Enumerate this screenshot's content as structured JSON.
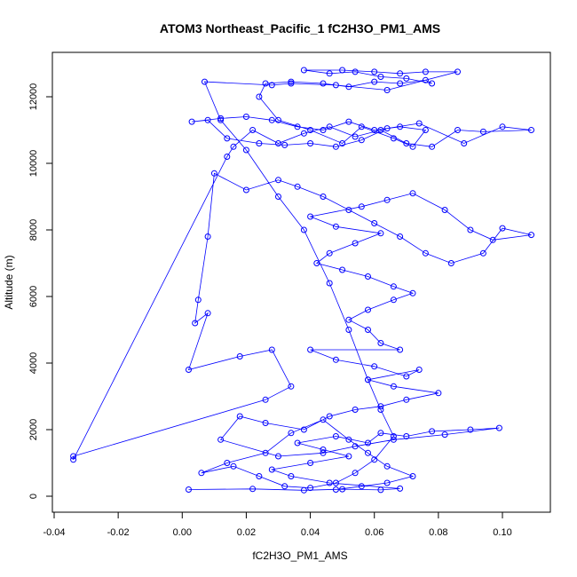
{
  "chart_data": {
    "type": "scatter",
    "title": "ATOM3 Northeast_Pacific_1 fC2H3O_PM1_AMS",
    "xlabel": "fC2H3O_PM1_AMS",
    "ylabel": "Altitude (m)",
    "xlim": [
      -0.04,
      0.11
    ],
    "ylim": [
      0,
      13000
    ],
    "x_ticks": [
      -0.04,
      -0.02,
      0.0,
      0.02,
      0.04,
      0.06,
      0.08,
      0.1
    ],
    "x_tick_labels": [
      "-0.04",
      "-0.02",
      "0.00",
      "0.02",
      "0.04",
      "0.06",
      "0.08",
      "0.10"
    ],
    "y_ticks": [
      0,
      2000,
      4000,
      6000,
      8000,
      10000,
      12000
    ],
    "y_tick_labels": [
      "0",
      "2000",
      "4000",
      "6000",
      "8000",
      "10000",
      "12000"
    ],
    "grid": false,
    "series_color": "#0000ff",
    "marker": "open-circle",
    "connected": true,
    "points": [
      [
        0.002,
        200
      ],
      [
        0.022,
        220
      ],
      [
        0.038,
        180
      ],
      [
        0.05,
        210
      ],
      [
        0.062,
        190
      ],
      [
        0.068,
        230
      ],
      [
        0.046,
        400
      ],
      [
        0.034,
        600
      ],
      [
        0.028,
        800
      ],
      [
        0.04,
        1000
      ],
      [
        0.052,
        1200
      ],
      [
        0.044,
        1400
      ],
      [
        0.036,
        1600
      ],
      [
        0.048,
        1800
      ],
      [
        0.058,
        1600
      ],
      [
        0.062,
        1900
      ],
      [
        0.07,
        1800
      ],
      [
        0.078,
        1950
      ],
      [
        0.09,
        2000
      ],
      [
        0.099,
        2050
      ],
      [
        0.082,
        1850
      ],
      [
        0.066,
        1700
      ],
      [
        0.054,
        1500
      ],
      [
        0.044,
        1300
      ],
      [
        0.03,
        1200
      ],
      [
        0.012,
        1700
      ],
      [
        0.018,
        2400
      ],
      [
        0.026,
        2200
      ],
      [
        0.038,
        2000
      ],
      [
        0.046,
        2400
      ],
      [
        0.054,
        2600
      ],
      [
        0.062,
        2700
      ],
      [
        0.07,
        2900
      ],
      [
        0.08,
        3100
      ],
      [
        0.066,
        3300
      ],
      [
        0.058,
        3500
      ],
      [
        0.074,
        3800
      ],
      [
        0.07,
        3600
      ],
      [
        0.06,
        3900
      ],
      [
        0.048,
        4100
      ],
      [
        0.04,
        4400
      ],
      [
        0.068,
        4400
      ],
      [
        0.062,
        4600
      ],
      [
        0.058,
        5000
      ],
      [
        0.052,
        5300
      ],
      [
        0.058,
        5600
      ],
      [
        0.066,
        5900
      ],
      [
        0.072,
        6100
      ],
      [
        0.066,
        6300
      ],
      [
        0.058,
        6600
      ],
      [
        0.05,
        6800
      ],
      [
        0.042,
        7000
      ],
      [
        0.046,
        7300
      ],
      [
        0.054,
        7600
      ],
      [
        0.062,
        7900
      ],
      [
        0.048,
        8100
      ],
      [
        0.04,
        8400
      ],
      [
        0.056,
        8700
      ],
      [
        0.064,
        8900
      ],
      [
        0.072,
        9100
      ],
      [
        0.082,
        8600
      ],
      [
        0.09,
        8000
      ],
      [
        0.097,
        7700
      ],
      [
        0.109,
        7850
      ],
      [
        0.1,
        8050
      ],
      [
        0.094,
        7300
      ],
      [
        0.084,
        7000
      ],
      [
        0.076,
        7300
      ],
      [
        0.068,
        7800
      ],
      [
        0.06,
        8200
      ],
      [
        0.052,
        8600
      ],
      [
        0.044,
        9000
      ],
      [
        0.036,
        9300
      ],
      [
        0.03,
        9500
      ],
      [
        0.02,
        9200
      ],
      [
        0.01,
        9700
      ],
      [
        0.008,
        7800
      ],
      [
        0.005,
        5900
      ],
      [
        0.004,
        5200
      ],
      [
        0.008,
        5500
      ],
      [
        0.002,
        3800
      ],
      [
        0.018,
        4200
      ],
      [
        0.028,
        4400
      ],
      [
        0.034,
        3300
      ],
      [
        0.026,
        2900
      ],
      [
        -0.034,
        1200
      ],
      [
        -0.034,
        1100
      ],
      [
        0.014,
        10200
      ],
      [
        0.016,
        10500
      ],
      [
        0.022,
        11000
      ],
      [
        0.03,
        10600
      ],
      [
        0.038,
        10900
      ],
      [
        0.046,
        11100
      ],
      [
        0.054,
        10800
      ],
      [
        0.062,
        11000
      ],
      [
        0.07,
        10600
      ],
      [
        0.078,
        10500
      ],
      [
        0.086,
        11000
      ],
      [
        0.094,
        10950
      ],
      [
        0.109,
        11000
      ],
      [
        0.1,
        11100
      ],
      [
        0.088,
        10600
      ],
      [
        0.074,
        11200
      ],
      [
        0.064,
        11050
      ],
      [
        0.056,
        10700
      ],
      [
        0.048,
        10500
      ],
      [
        0.04,
        10600
      ],
      [
        0.032,
        10550
      ],
      [
        0.024,
        10600
      ],
      [
        0.014,
        10750
      ],
      [
        0.008,
        11300
      ],
      [
        0.003,
        11250
      ],
      [
        0.012,
        11350
      ],
      [
        0.02,
        11400
      ],
      [
        0.028,
        11300
      ],
      [
        0.036,
        11100
      ],
      [
        0.044,
        11000
      ],
      [
        0.052,
        11250
      ],
      [
        0.06,
        11000
      ],
      [
        0.068,
        11100
      ],
      [
        0.076,
        11000
      ],
      [
        0.072,
        10500
      ],
      [
        0.066,
        10750
      ],
      [
        0.056,
        11100
      ],
      [
        0.05,
        10600
      ],
      [
        0.04,
        11000
      ],
      [
        0.03,
        11300
      ],
      [
        0.024,
        12000
      ],
      [
        0.026,
        12400
      ],
      [
        0.034,
        12450
      ],
      [
        0.044,
        12400
      ],
      [
        0.052,
        12300
      ],
      [
        0.06,
        12450
      ],
      [
        0.068,
        12400
      ],
      [
        0.076,
        12500
      ],
      [
        0.078,
        12400
      ],
      [
        0.07,
        12550
      ],
      [
        0.062,
        12600
      ],
      [
        0.054,
        12750
      ],
      [
        0.046,
        12700
      ],
      [
        0.038,
        12800
      ],
      [
        0.05,
        12800
      ],
      [
        0.06,
        12750
      ],
      [
        0.068,
        12700
      ],
      [
        0.076,
        12750
      ],
      [
        0.086,
        12750
      ],
      [
        0.064,
        12200
      ],
      [
        0.048,
        12350
      ],
      [
        0.034,
        12400
      ],
      [
        0.028,
        12350
      ],
      [
        0.007,
        12450
      ],
      [
        0.012,
        11300
      ],
      [
        0.02,
        10400
      ],
      [
        0.03,
        9000
      ],
      [
        0.038,
        8000
      ],
      [
        0.046,
        6400
      ],
      [
        0.052,
        5000
      ],
      [
        0.058,
        3500
      ],
      [
        0.062,
        2600
      ],
      [
        0.066,
        1800
      ],
      [
        0.06,
        1100
      ],
      [
        0.054,
        700
      ],
      [
        0.048,
        400
      ],
      [
        0.04,
        250
      ],
      [
        0.032,
        300
      ],
      [
        0.024,
        600
      ],
      [
        0.016,
        900
      ],
      [
        0.006,
        700
      ],
      [
        0.014,
        1000
      ],
      [
        0.026,
        1300
      ],
      [
        0.034,
        1900
      ],
      [
        0.044,
        2300
      ],
      [
        0.052,
        1700
      ],
      [
        0.058,
        1300
      ],
      [
        0.064,
        900
      ],
      [
        0.072,
        600
      ],
      [
        0.064,
        400
      ],
      [
        0.056,
        300
      ],
      [
        0.048,
        200
      ]
    ]
  }
}
